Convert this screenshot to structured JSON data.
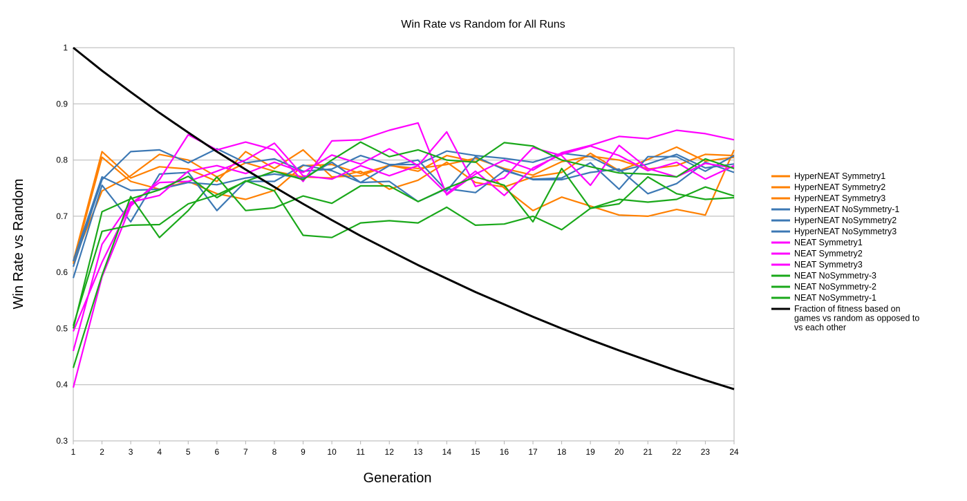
{
  "chart_data": {
    "type": "line",
    "title": "Win Rate vs Random for All Runs",
    "xlabel": "Generation",
    "ylabel": "Win Rate vs Random",
    "x": [
      1,
      2,
      3,
      4,
      5,
      6,
      7,
      8,
      9,
      10,
      11,
      12,
      13,
      14,
      15,
      16,
      17,
      18,
      19,
      20,
      21,
      22,
      23,
      24
    ],
    "xlim": [
      1,
      24
    ],
    "ylim": [
      0.3,
      1
    ],
    "yticks": [
      "0.3",
      "0.4",
      "0.5",
      "0.6",
      "0.7",
      "0.8",
      "0.9",
      "1"
    ],
    "grid": true,
    "legend_position": "right",
    "series": [
      {
        "name": "HyperNEAT Symmetry1",
        "color": "#ff8000",
        "values": [
          0.615,
          0.805,
          0.762,
          0.748,
          0.762,
          0.74,
          0.73,
          0.746,
          0.79,
          0.792,
          0.776,
          0.79,
          0.785,
          0.792,
          0.803,
          0.785,
          0.773,
          0.797,
          0.807,
          0.8,
          0.784,
          0.79,
          0.81,
          0.808
        ]
      },
      {
        "name": "HyperNEAT Symmetry2",
        "color": "#ff8000",
        "values": [
          0.62,
          0.815,
          0.768,
          0.788,
          0.784,
          0.762,
          0.815,
          0.785,
          0.818,
          0.77,
          0.772,
          0.791,
          0.78,
          0.808,
          0.797,
          0.75,
          0.71,
          0.734,
          0.718,
          0.702,
          0.7,
          0.712,
          0.702,
          0.818
        ]
      },
      {
        "name": "HyperNEAT Symmetry3",
        "color": "#ff8000",
        "values": [
          0.618,
          0.745,
          0.772,
          0.81,
          0.8,
          0.77,
          0.795,
          0.78,
          0.77,
          0.768,
          0.78,
          0.748,
          0.764,
          0.796,
          0.76,
          0.752,
          0.77,
          0.778,
          0.812,
          0.781,
          0.801,
          0.823,
          0.798,
          0.805
        ]
      },
      {
        "name": "HyperNEAT NoSymmetry-1",
        "color": "#3c78b4",
        "values": [
          0.61,
          0.765,
          0.815,
          0.818,
          0.795,
          0.82,
          0.795,
          0.802,
          0.78,
          0.784,
          0.808,
          0.792,
          0.792,
          0.816,
          0.808,
          0.803,
          0.796,
          0.812,
          0.806,
          0.78,
          0.793,
          0.81,
          0.786,
          0.793
        ]
      },
      {
        "name": "HyperNEAT NoSymmetry2",
        "color": "#3c78b4",
        "values": [
          0.59,
          0.755,
          0.69,
          0.775,
          0.778,
          0.71,
          0.762,
          0.762,
          0.791,
          0.781,
          0.76,
          0.762,
          0.726,
          0.749,
          0.742,
          0.781,
          0.766,
          0.768,
          0.795,
          0.748,
          0.806,
          0.806,
          0.78,
          0.808
        ]
      },
      {
        "name": "HyperNEAT NoSymmetry3",
        "color": "#3c78b4",
        "values": [
          0.62,
          0.77,
          0.746,
          0.748,
          0.76,
          0.756,
          0.768,
          0.775,
          0.768,
          0.796,
          0.76,
          0.79,
          0.8,
          0.745,
          0.806,
          0.783,
          0.765,
          0.765,
          0.778,
          0.784,
          0.74,
          0.758,
          0.796,
          0.778
        ]
      },
      {
        "name": "NEAT Symmetry1",
        "color": "#ff00ff",
        "values": [
          0.395,
          0.592,
          0.718,
          0.765,
          0.845,
          0.818,
          0.832,
          0.818,
          0.762,
          0.834,
          0.836,
          0.853,
          0.866,
          0.738,
          0.775,
          0.8,
          0.782,
          0.813,
          0.826,
          0.842,
          0.838,
          0.853,
          0.847,
          0.836
        ]
      },
      {
        "name": "NEAT Symmetry2",
        "color": "#ff00ff",
        "values": [
          0.46,
          0.65,
          0.725,
          0.737,
          0.78,
          0.79,
          0.776,
          0.796,
          0.778,
          0.809,
          0.793,
          0.82,
          0.79,
          0.85,
          0.753,
          0.768,
          0.822,
          0.808,
          0.755,
          0.826,
          0.785,
          0.77,
          0.794,
          0.786
        ]
      },
      {
        "name": "NEAT Symmetry3",
        "color": "#ff00ff",
        "values": [
          0.495,
          0.618,
          0.722,
          0.76,
          0.762,
          0.78,
          0.8,
          0.83,
          0.772,
          0.766,
          0.79,
          0.772,
          0.79,
          0.74,
          0.78,
          0.737,
          0.786,
          0.81,
          0.825,
          0.808,
          0.781,
          0.796,
          0.766,
          0.79
        ]
      },
      {
        "name": "NEAT NoSymmetry-3",
        "color": "#1aa81a",
        "values": [
          0.43,
          0.595,
          0.735,
          0.662,
          0.71,
          0.77,
          0.71,
          0.715,
          0.736,
          0.723,
          0.754,
          0.754,
          0.726,
          0.75,
          0.77,
          0.755,
          0.69,
          0.785,
          0.714,
          0.722,
          0.77,
          0.74,
          0.73,
          0.733
        ]
      },
      {
        "name": "NEAT NoSymmetry-2",
        "color": "#1aa81a",
        "values": [
          0.5,
          0.708,
          0.731,
          0.747,
          0.771,
          0.733,
          0.763,
          0.745,
          0.666,
          0.662,
          0.688,
          0.692,
          0.688,
          0.716,
          0.684,
          0.686,
          0.7,
          0.676,
          0.714,
          0.73,
          0.725,
          0.73,
          0.752,
          0.736
        ]
      },
      {
        "name": "NEAT NoSymmetry-1",
        "color": "#1aa81a",
        "values": [
          0.505,
          0.673,
          0.684,
          0.685,
          0.722,
          0.738,
          0.762,
          0.78,
          0.765,
          0.8,
          0.832,
          0.806,
          0.818,
          0.8,
          0.796,
          0.831,
          0.825,
          0.8,
          0.788,
          0.777,
          0.775,
          0.77,
          0.802,
          0.785
        ]
      },
      {
        "name": "Fraction of fitness based on games vs random as opposed to vs each other",
        "color": "#000000",
        "values": [
          1.0,
          0.959,
          0.921,
          0.884,
          0.849,
          0.815,
          0.783,
          0.752,
          0.722,
          0.693,
          0.665,
          0.639,
          0.613,
          0.589,
          0.565,
          0.543,
          0.521,
          0.5,
          0.48,
          0.461,
          0.443,
          0.425,
          0.408,
          0.392
        ]
      }
    ]
  }
}
